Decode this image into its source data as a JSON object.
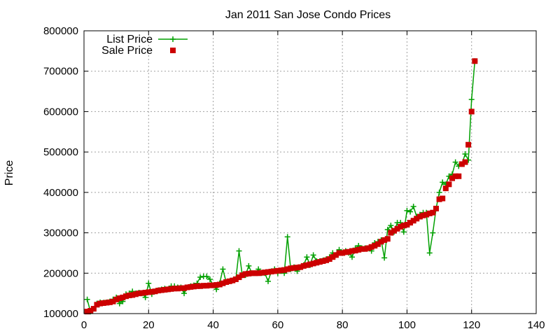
{
  "chart_data": {
    "type": "line",
    "title": "Jan 2011 San Jose Condo Prices",
    "xlabel": "",
    "ylabel": "Price",
    "xlim": [
      0,
      140
    ],
    "ylim": [
      100000,
      800000
    ],
    "xticks": [
      "0",
      "20",
      "40",
      "60",
      "80",
      "100",
      "120",
      "140"
    ],
    "yticks": [
      "100000",
      "200000",
      "300000",
      "400000",
      "500000",
      "600000",
      "700000",
      "800000"
    ],
    "grid": true,
    "legend_position": "top-left",
    "series": [
      {
        "name": "List Price",
        "style": "lines+plus-markers",
        "color": "#00a000",
        "values": [
          [
            1,
            135000
          ],
          [
            2,
            105000
          ],
          [
            3,
            112000
          ],
          [
            4,
            125000
          ],
          [
            5,
            128000
          ],
          [
            6,
            127000
          ],
          [
            7,
            128000
          ],
          [
            8,
            130000
          ],
          [
            9,
            135000
          ],
          [
            10,
            140000
          ],
          [
            11,
            125000
          ],
          [
            12,
            130000
          ],
          [
            13,
            148000
          ],
          [
            14,
            150000
          ],
          [
            15,
            155000
          ],
          [
            16,
            150000
          ],
          [
            17,
            152000
          ],
          [
            18,
            150000
          ],
          [
            19,
            140000
          ],
          [
            20,
            175000
          ],
          [
            21,
            148000
          ],
          [
            22,
            155000
          ],
          [
            23,
            158000
          ],
          [
            24,
            160000
          ],
          [
            25,
            162000
          ],
          [
            26,
            160000
          ],
          [
            27,
            168000
          ],
          [
            28,
            168000
          ],
          [
            29,
            165000
          ],
          [
            30,
            165000
          ],
          [
            31,
            150000
          ],
          [
            32,
            165000
          ],
          [
            33,
            168000
          ],
          [
            34,
            170000
          ],
          [
            35,
            175000
          ],
          [
            36,
            190000
          ],
          [
            37,
            192000
          ],
          [
            38,
            192000
          ],
          [
            39,
            185000
          ],
          [
            40,
            170000
          ],
          [
            41,
            160000
          ],
          [
            42,
            175000
          ],
          [
            43,
            210000
          ],
          [
            44,
            178000
          ],
          [
            45,
            180000
          ],
          [
            46,
            182000
          ],
          [
            47,
            185000
          ],
          [
            48,
            255000
          ],
          [
            49,
            195000
          ],
          [
            50,
            195000
          ],
          [
            51,
            218000
          ],
          [
            52,
            200000
          ],
          [
            53,
            200000
          ],
          [
            54,
            210000
          ],
          [
            55,
            200000
          ],
          [
            56,
            200000
          ],
          [
            57,
            180000
          ],
          [
            58,
            205000
          ],
          [
            59,
            210000
          ],
          [
            60,
            200000
          ],
          [
            61,
            205000
          ],
          [
            62,
            200000
          ],
          [
            63,
            290000
          ],
          [
            64,
            210000
          ],
          [
            65,
            215000
          ],
          [
            66,
            205000
          ],
          [
            67,
            215000
          ],
          [
            68,
            220000
          ],
          [
            69,
            240000
          ],
          [
            70,
            220000
          ],
          [
            71,
            245000
          ],
          [
            72,
            230000
          ],
          [
            73,
            230000
          ],
          [
            74,
            232000
          ],
          [
            75,
            235000
          ],
          [
            76,
            240000
          ],
          [
            77,
            250000
          ],
          [
            78,
            245000
          ],
          [
            79,
            258000
          ],
          [
            80,
            250000
          ],
          [
            81,
            255000
          ],
          [
            82,
            250000
          ],
          [
            83,
            240000
          ],
          [
            84,
            262000
          ],
          [
            85,
            268000
          ],
          [
            86,
            262000
          ],
          [
            87,
            262000
          ],
          [
            88,
            262000
          ],
          [
            89,
            255000
          ],
          [
            90,
            275000
          ],
          [
            91,
            278000
          ],
          [
            92,
            282000
          ],
          [
            93,
            238000
          ],
          [
            94,
            308000
          ],
          [
            95,
            318000
          ],
          [
            96,
            302000
          ],
          [
            97,
            325000
          ],
          [
            98,
            325000
          ],
          [
            99,
            302000
          ],
          [
            100,
            355000
          ],
          [
            101,
            352000
          ],
          [
            102,
            365000
          ],
          [
            103,
            340000
          ],
          [
            104,
            345000
          ],
          [
            105,
            350000
          ],
          [
            106,
            350000
          ],
          [
            107,
            250000
          ],
          [
            108,
            300000
          ],
          [
            109,
            360000
          ],
          [
            110,
            400000
          ],
          [
            111,
            425000
          ],
          [
            112,
            420000
          ],
          [
            113,
            440000
          ],
          [
            114,
            445000
          ],
          [
            115,
            475000
          ],
          [
            116,
            465000
          ],
          [
            117,
            470000
          ],
          [
            118,
            495000
          ],
          [
            119,
            480000
          ],
          [
            120,
            630000
          ],
          [
            121,
            725000
          ]
        ]
      },
      {
        "name": "Sale Price",
        "style": "square-markers",
        "color": "#cc0000",
        "values": [
          [
            1,
            105000
          ],
          [
            2,
            107000
          ],
          [
            3,
            112000
          ],
          [
            4,
            122000
          ],
          [
            5,
            125000
          ],
          [
            6,
            126000
          ],
          [
            7,
            127000
          ],
          [
            8,
            128000
          ],
          [
            9,
            130000
          ],
          [
            10,
            135000
          ],
          [
            11,
            138000
          ],
          [
            12,
            140000
          ],
          [
            13,
            143000
          ],
          [
            14,
            145000
          ],
          [
            15,
            146000
          ],
          [
            16,
            148000
          ],
          [
            17,
            150000
          ],
          [
            18,
            151000
          ],
          [
            19,
            152000
          ],
          [
            20,
            153000
          ],
          [
            21,
            154000
          ],
          [
            22,
            155000
          ],
          [
            23,
            157000
          ],
          [
            24,
            158000
          ],
          [
            25,
            159000
          ],
          [
            26,
            160000
          ],
          [
            27,
            161000
          ],
          [
            28,
            162000
          ],
          [
            29,
            162000
          ],
          [
            30,
            163000
          ],
          [
            31,
            163000
          ],
          [
            32,
            165000
          ],
          [
            33,
            166000
          ],
          [
            34,
            167000
          ],
          [
            35,
            168000
          ],
          [
            36,
            168000
          ],
          [
            37,
            169000
          ],
          [
            38,
            169000
          ],
          [
            39,
            170000
          ],
          [
            40,
            170000
          ],
          [
            41,
            171000
          ],
          [
            42,
            172000
          ],
          [
            43,
            175000
          ],
          [
            44,
            178000
          ],
          [
            45,
            180000
          ],
          [
            46,
            182000
          ],
          [
            47,
            185000
          ],
          [
            48,
            190000
          ],
          [
            49,
            195000
          ],
          [
            50,
            198000
          ],
          [
            51,
            199000
          ],
          [
            52,
            200000
          ],
          [
            53,
            200000
          ],
          [
            54,
            200000
          ],
          [
            55,
            201000
          ],
          [
            56,
            202000
          ],
          [
            57,
            203000
          ],
          [
            58,
            204000
          ],
          [
            59,
            205000
          ],
          [
            60,
            206000
          ],
          [
            61,
            207000
          ],
          [
            62,
            208000
          ],
          [
            63,
            210000
          ],
          [
            64,
            212000
          ],
          [
            65,
            213000
          ],
          [
            66,
            214000
          ],
          [
            67,
            215000
          ],
          [
            68,
            218000
          ],
          [
            69,
            220000
          ],
          [
            70,
            222000
          ],
          [
            71,
            224000
          ],
          [
            72,
            226000
          ],
          [
            73,
            228000
          ],
          [
            74,
            230000
          ],
          [
            75,
            232000
          ],
          [
            76,
            235000
          ],
          [
            77,
            240000
          ],
          [
            78,
            245000
          ],
          [
            79,
            250000
          ],
          [
            80,
            250000
          ],
          [
            81,
            252000
          ],
          [
            82,
            253000
          ],
          [
            83,
            255000
          ],
          [
            84,
            256000
          ],
          [
            85,
            258000
          ],
          [
            86,
            260000
          ],
          [
            87,
            260000
          ],
          [
            88,
            262000
          ],
          [
            89,
            265000
          ],
          [
            90,
            268000
          ],
          [
            91,
            272000
          ],
          [
            92,
            278000
          ],
          [
            93,
            282000
          ],
          [
            94,
            285000
          ],
          [
            95,
            300000
          ],
          [
            96,
            305000
          ],
          [
            97,
            310000
          ],
          [
            98,
            315000
          ],
          [
            99,
            318000
          ],
          [
            100,
            320000
          ],
          [
            101,
            325000
          ],
          [
            102,
            330000
          ],
          [
            103,
            335000
          ],
          [
            104,
            340000
          ],
          [
            105,
            343000
          ],
          [
            106,
            345000
          ],
          [
            107,
            348000
          ],
          [
            108,
            350000
          ],
          [
            109,
            360000
          ],
          [
            110,
            383000
          ],
          [
            111,
            385000
          ],
          [
            112,
            410000
          ],
          [
            113,
            420000
          ],
          [
            114,
            435000
          ],
          [
            115,
            440000
          ],
          [
            116,
            440000
          ],
          [
            117,
            470000
          ],
          [
            118,
            475000
          ],
          [
            119,
            518000
          ],
          [
            120,
            600000
          ],
          [
            121,
            725000
          ]
        ]
      }
    ]
  }
}
